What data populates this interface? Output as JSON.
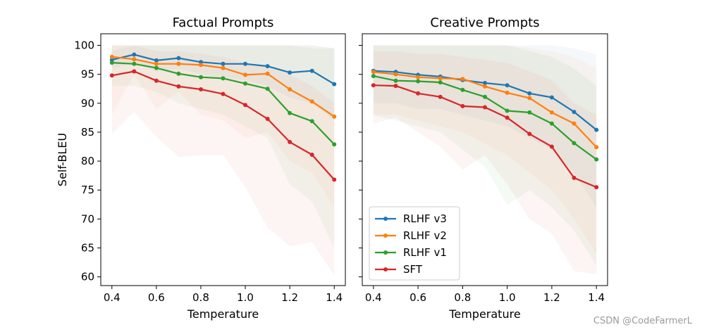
{
  "watermark": "CSDN @CodeFarmerL",
  "colors": {
    "RLHF v3": "#1f77b4",
    "RLHF v2": "#ff7f0e",
    "RLHF v1": "#2ca02c",
    "SFT": "#d62728"
  },
  "chart_data": [
    {
      "type": "line",
      "title": "Factual Prompts",
      "xlabel": "Temperature",
      "ylabel": "Self-BLEU",
      "xlim": [
        0.35,
        1.45
      ],
      "ylim": [
        58.5,
        102
      ],
      "xticks": [
        "0.4",
        "0.6",
        "0.8",
        "1.0",
        "1.2",
        "1.4"
      ],
      "yticks": [
        "60",
        "65",
        "70",
        "75",
        "80",
        "85",
        "90",
        "95",
        "100"
      ],
      "x": [
        0.4,
        0.5,
        0.6,
        0.7,
        0.8,
        0.9,
        1.0,
        1.1,
        1.2,
        1.3,
        1.4
      ],
      "series": [
        {
          "name": "RLHF v3",
          "values": [
            97.5,
            98.4,
            97.4,
            97.8,
            97.1,
            96.8,
            96.8,
            96.4,
            95.3,
            95.6,
            93.3
          ],
          "band_low": [
            96.0,
            97.0,
            95.5,
            96.0,
            95.0,
            94.5,
            94.0,
            93.0,
            91.0,
            90.0,
            87.0
          ],
          "band_high": [
            99.0,
            100.0,
            100.0,
            100.0,
            100.0,
            100.0,
            100.0,
            100.0,
            100.0,
            100.0,
            99.5
          ]
        },
        {
          "name": "RLHF v2",
          "values": [
            98.0,
            97.6,
            96.8,
            96.8,
            96.6,
            96.1,
            94.9,
            95.1,
            92.4,
            90.3,
            87.7
          ],
          "band_low": [
            88.0,
            95.0,
            89.0,
            92.0,
            88.0,
            87.0,
            84.0,
            85.0,
            80.0,
            78.0,
            72.0
          ],
          "band_high": [
            100.0,
            100.0,
            100.0,
            100.0,
            100.0,
            100.0,
            100.0,
            100.0,
            100.0,
            100.0,
            99.5
          ]
        },
        {
          "name": "RLHF v1",
          "values": [
            97.0,
            96.8,
            96.1,
            95.1,
            94.5,
            94.3,
            93.4,
            92.5,
            88.3,
            86.9,
            82.9
          ],
          "band_low": [
            93.0,
            93.0,
            92.0,
            90.0,
            89.0,
            88.0,
            86.0,
            84.0,
            76.0,
            73.0,
            65.0
          ],
          "band_high": [
            100.0,
            100.0,
            100.0,
            100.0,
            100.0,
            100.0,
            100.0,
            100.0,
            100.0,
            99.5,
            99.5
          ]
        },
        {
          "name": "SFT",
          "values": [
            94.8,
            95.5,
            93.9,
            92.9,
            92.4,
            91.6,
            89.7,
            87.3,
            83.3,
            81.1,
            76.8
          ],
          "band_low": [
            84.7,
            88.5,
            84.2,
            80.7,
            81.0,
            81.1,
            75.5,
            68.5,
            65.3,
            66.0,
            60.3
          ],
          "band_high": [
            100.0,
            100.0,
            99.0,
            99.0,
            98.5,
            98.0,
            97.0,
            96.5,
            95.0,
            93.0,
            90.0
          ]
        }
      ]
    },
    {
      "type": "line",
      "title": "Creative Prompts",
      "xlabel": "Temperature",
      "ylabel": "",
      "xlim": [
        0.35,
        1.45
      ],
      "ylim": [
        58.5,
        102
      ],
      "xticks": [
        "0.4",
        "0.6",
        "0.8",
        "1.0",
        "1.2",
        "1.4"
      ],
      "yticks": [],
      "legend": {
        "position": "lower-left",
        "order": [
          "RLHF v3",
          "RLHF v2",
          "RLHF v1",
          "SFT"
        ]
      },
      "x": [
        0.4,
        0.5,
        0.6,
        0.7,
        0.8,
        0.9,
        1.0,
        1.1,
        1.2,
        1.3,
        1.4
      ],
      "series": [
        {
          "name": "RLHF v3",
          "values": [
            95.6,
            95.4,
            94.9,
            94.6,
            94.0,
            93.5,
            93.1,
            91.7,
            91.0,
            88.5,
            85.4
          ],
          "band_low": [
            90.0,
            90.0,
            89.0,
            89.0,
            88.0,
            87.0,
            86.0,
            84.0,
            82.0,
            78.0,
            72.0
          ],
          "band_high": [
            100.0,
            100.0,
            100.0,
            100.0,
            100.0,
            100.0,
            100.0,
            100.0,
            100.0,
            99.5,
            98.5
          ]
        },
        {
          "name": "RLHF v2",
          "values": [
            95.4,
            95.0,
            94.5,
            94.3,
            94.2,
            92.9,
            91.8,
            90.9,
            88.4,
            86.5,
            82.4
          ],
          "band_low": [
            88.0,
            88.0,
            87.0,
            86.0,
            85.0,
            83.0,
            81.0,
            78.0,
            75.0,
            70.0,
            64.0
          ],
          "band_high": [
            100.0,
            100.0,
            100.0,
            100.0,
            100.0,
            100.0,
            100.0,
            99.5,
            99.0,
            98.0,
            96.0
          ]
        },
        {
          "name": "RLHF v1",
          "values": [
            94.7,
            93.9,
            93.8,
            93.6,
            92.3,
            91.1,
            88.7,
            88.4,
            86.5,
            83.1,
            80.3
          ],
          "band_low": [
            88.0,
            87.0,
            86.0,
            85.0,
            82.0,
            79.0,
            72.5,
            75.0,
            72.0,
            68.0,
            62.0
          ],
          "band_high": [
            100.0,
            100.0,
            100.0,
            100.0,
            100.0,
            100.0,
            100.0,
            99.0,
            98.0,
            96.0,
            93.0
          ]
        },
        {
          "name": "SFT",
          "values": [
            93.1,
            93.0,
            91.7,
            91.1,
            89.5,
            89.3,
            87.5,
            84.7,
            82.5,
            77.1,
            75.5
          ],
          "band_low": [
            86.5,
            87.5,
            85.0,
            82.5,
            78.5,
            81.0,
            76.0,
            70.0,
            67.5,
            61.0,
            60.5
          ],
          "band_high": [
            99.0,
            99.0,
            98.5,
            98.5,
            98.0,
            97.5,
            97.0,
            95.5,
            94.0,
            90.0,
            88.0
          ]
        }
      ]
    }
  ]
}
